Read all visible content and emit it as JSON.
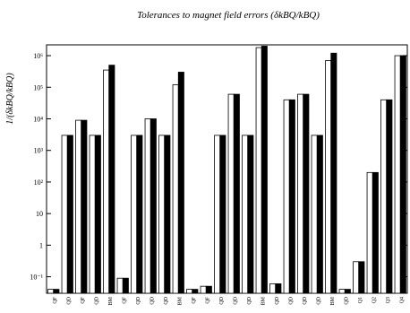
{
  "chart_data": {
    "type": "bar",
    "title": "Tolerances to magnet field errors  (δkBQ/kBQ)",
    "y_label": "1/(δkBQ/kBQ)",
    "log_scale": true,
    "categories": [
      "QF",
      "QD",
      "QF",
      "QD",
      "BM",
      "QF",
      "QD",
      "QD",
      "QD",
      "BM",
      "QF",
      "QF",
      "QD",
      "QD",
      "QD",
      "BM",
      "QD",
      "QD",
      "QD",
      "QD",
      "BM",
      "QD",
      "Q1",
      "Q2",
      "Q3",
      "Q4"
    ],
    "series": [
      {
        "color": "#ffffff",
        "values": [
          0.04,
          3000,
          9000,
          3000,
          350000,
          0.09,
          3000,
          10000,
          3000,
          120000,
          0.04,
          0.05,
          3000,
          60000,
          3000,
          1800000,
          0.06,
          40000,
          60000,
          3000,
          700000,
          0.04,
          0.3,
          200,
          40000,
          1000000
        ]
      },
      {
        "color": "#000000",
        "values": [
          0.04,
          3000,
          9000,
          3000,
          500000,
          0.09,
          3000,
          10000,
          3000,
          300000,
          0.04,
          0.05,
          3000,
          60000,
          3000,
          2000000,
          0.06,
          40000,
          60000,
          3000,
          1200000,
          0.04,
          0.3,
          200,
          40000,
          1000000
        ]
      }
    ],
    "ylim": [
      0.03,
      2200000
    ],
    "yticks": [
      {
        "value": 0.1,
        "label": "10⁻¹"
      },
      1,
      10,
      {
        "value": 100,
        "label": "10²"
      },
      {
        "value": 1000,
        "label": "10³"
      },
      {
        "value": 10000,
        "label": "10⁴"
      },
      {
        "value": 100000,
        "label": "10⁵"
      },
      {
        "value": 1000000,
        "label": "10⁶"
      }
    ]
  }
}
